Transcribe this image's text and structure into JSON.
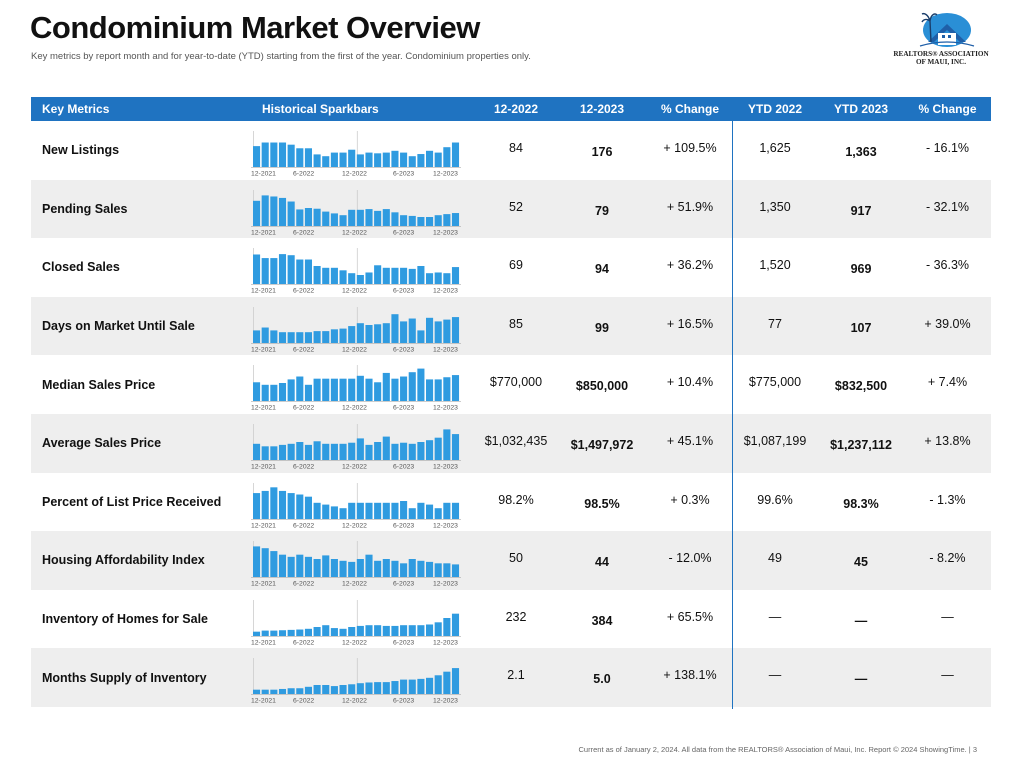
{
  "header": {
    "title": "Condominium Market Overview",
    "subtitle": "Key metrics by report month and for year-to-date (YTD) starting from the first of the year. Condominium properties only."
  },
  "logo": {
    "line1": "REALTORS® ASSOCIATION",
    "line2": "OF MAUI, INC.",
    "colors": {
      "sky": "#2a8fd6",
      "roof": "#1f5fa8",
      "house": "#ffffff"
    }
  },
  "table": {
    "columns": [
      "Key Metrics",
      "Historical Sparkbars",
      "12-2022",
      "12-2023",
      "% Change",
      "YTD 2022",
      "YTD 2023",
      "% Change"
    ],
    "spark_axis_labels": [
      "12-2021",
      "6-2022",
      "12-2022",
      "6-2023",
      "12-2023"
    ],
    "spark_color": "#2f9be0",
    "rows": [
      {
        "metric": "New Listings",
        "v2022": "84",
        "v2023": "176",
        "change": "+ 109.5%",
        "ytd2022": "1,625",
        "ytd2023": "1,363",
        "ytdChange": "- 16.1%",
        "spark": [
          0.58,
          0.68,
          0.68,
          0.68,
          0.62,
          0.52,
          0.52,
          0.35,
          0.3,
          0.4,
          0.4,
          0.48,
          0.35,
          0.4,
          0.38,
          0.4,
          0.45,
          0.4,
          0.3,
          0.36,
          0.45,
          0.4,
          0.55,
          0.68
        ]
      },
      {
        "metric": "Pending Sales",
        "v2022": "52",
        "v2023": "79",
        "change": "+ 51.9%",
        "ytd2022": "1,350",
        "ytd2023": "917",
        "ytdChange": "- 32.1%",
        "spark": [
          0.7,
          0.85,
          0.82,
          0.78,
          0.68,
          0.46,
          0.5,
          0.48,
          0.4,
          0.35,
          0.3,
          0.45,
          0.45,
          0.47,
          0.42,
          0.47,
          0.38,
          0.3,
          0.28,
          0.25,
          0.25,
          0.3,
          0.33,
          0.36
        ]
      },
      {
        "metric": "Closed Sales",
        "v2022": "69",
        "v2023": "94",
        "change": "+ 36.2%",
        "ytd2022": "1,520",
        "ytd2023": "969",
        "ytdChange": "- 36.3%",
        "spark": [
          0.82,
          0.72,
          0.72,
          0.83,
          0.8,
          0.68,
          0.68,
          0.5,
          0.45,
          0.45,
          0.38,
          0.3,
          0.25,
          0.32,
          0.52,
          0.45,
          0.45,
          0.45,
          0.42,
          0.5,
          0.3,
          0.32,
          0.3,
          0.47
        ]
      },
      {
        "metric": "Days on Market Until Sale",
        "v2022": "85",
        "v2023": "99",
        "change": "+ 16.5%",
        "ytd2022": "77",
        "ytd2023": "107",
        "ytdChange": "+ 39.0%",
        "spark": [
          0.35,
          0.43,
          0.35,
          0.3,
          0.3,
          0.3,
          0.3,
          0.33,
          0.33,
          0.38,
          0.4,
          0.47,
          0.55,
          0.5,
          0.52,
          0.55,
          0.8,
          0.6,
          0.68,
          0.35,
          0.7,
          0.6,
          0.65,
          0.72
        ]
      },
      {
        "metric": "Median Sales Price",
        "v2022": "$770,000",
        "v2023": "$850,000",
        "change": "+ 10.4%",
        "ytd2022": "$775,000",
        "ytd2023": "$832,500",
        "ytdChange": "+ 7.4%",
        "spark": [
          0.52,
          0.45,
          0.45,
          0.5,
          0.6,
          0.68,
          0.45,
          0.62,
          0.62,
          0.62,
          0.62,
          0.62,
          0.7,
          0.62,
          0.52,
          0.78,
          0.62,
          0.68,
          0.8,
          0.9,
          0.6,
          0.6,
          0.66,
          0.72
        ]
      },
      {
        "metric": "Average Sales Price",
        "v2022": "$1,032,435",
        "v2023": "$1,497,972",
        "change": "+ 45.1%",
        "ytd2022": "$1,087,199",
        "ytd2023": "$1,237,112",
        "ytdChange": "+ 13.8%",
        "spark": [
          0.45,
          0.38,
          0.38,
          0.42,
          0.45,
          0.5,
          0.42,
          0.52,
          0.45,
          0.45,
          0.45,
          0.48,
          0.6,
          0.42,
          0.5,
          0.65,
          0.45,
          0.48,
          0.45,
          0.5,
          0.55,
          0.62,
          0.85,
          0.72
        ]
      },
      {
        "metric": "Percent of List Price Received",
        "v2022": "98.2%",
        "v2023": "98.5%",
        "change": "+ 0.3%",
        "ytd2022": "99.6%",
        "ytd2023": "98.3%",
        "ytdChange": "- 1.3%",
        "spark": [
          0.72,
          0.78,
          0.88,
          0.78,
          0.72,
          0.68,
          0.62,
          0.45,
          0.4,
          0.35,
          0.3,
          0.45,
          0.45,
          0.45,
          0.45,
          0.45,
          0.45,
          0.5,
          0.3,
          0.45,
          0.4,
          0.3,
          0.45,
          0.45
        ]
      },
      {
        "metric": "Housing Affordability Index",
        "v2022": "50",
        "v2023": "44",
        "change": "- 12.0%",
        "ytd2022": "49",
        "ytd2023": "45",
        "ytdChange": "- 8.2%",
        "spark": [
          0.85,
          0.8,
          0.72,
          0.62,
          0.56,
          0.62,
          0.56,
          0.5,
          0.6,
          0.5,
          0.45,
          0.42,
          0.5,
          0.62,
          0.45,
          0.5,
          0.45,
          0.38,
          0.5,
          0.45,
          0.42,
          0.38,
          0.38,
          0.35
        ]
      },
      {
        "metric": "Inventory of Homes for Sale",
        "v2022": "232",
        "v2023": "384",
        "change": "+ 65.5%",
        "ytd2022": "—",
        "ytd2023": "—",
        "ytdChange": "—",
        "spark": [
          0.12,
          0.15,
          0.15,
          0.16,
          0.17,
          0.18,
          0.2,
          0.25,
          0.3,
          0.22,
          0.2,
          0.25,
          0.28,
          0.3,
          0.3,
          0.28,
          0.28,
          0.3,
          0.3,
          0.3,
          0.32,
          0.38,
          0.5,
          0.62
        ]
      },
      {
        "metric": "Months Supply of Inventory",
        "v2022": "2.1",
        "v2023": "5.0",
        "change": "+ 138.1%",
        "ytd2022": "—",
        "ytd2023": "—",
        "ytdChange": "—",
        "spark": [
          0.12,
          0.12,
          0.12,
          0.14,
          0.16,
          0.16,
          0.2,
          0.25,
          0.25,
          0.22,
          0.25,
          0.27,
          0.3,
          0.32,
          0.33,
          0.33,
          0.36,
          0.4,
          0.4,
          0.42,
          0.45,
          0.52,
          0.62,
          0.72
        ]
      }
    ]
  },
  "footer": {
    "text": "Current as of January 2, 2024. All data from the REALTORS® Association of Maui, Inc. Report © 2024 ShowingTime.  |  3"
  }
}
